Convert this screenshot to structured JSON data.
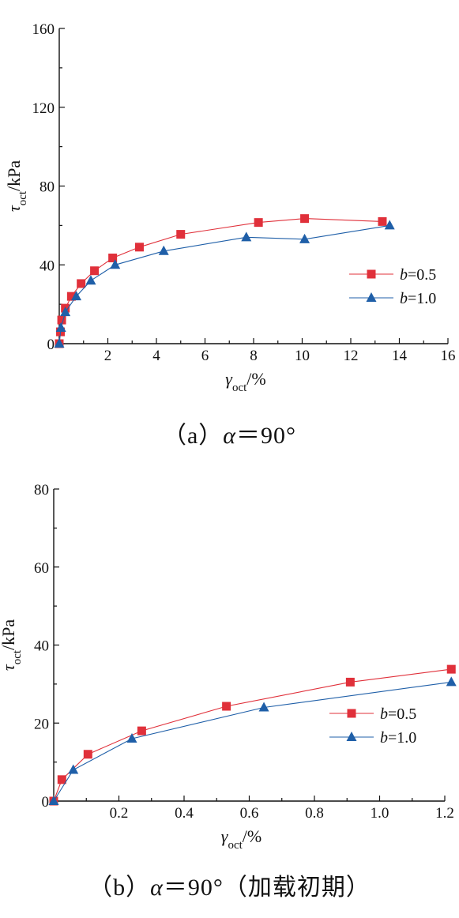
{
  "colors": {
    "series_red": "#e0303a",
    "series_blue": "#1f5fa8",
    "axis": "#111111"
  },
  "chart_data": [
    {
      "type": "line",
      "xlabel": {
        "symbol": "γ",
        "sub": "oct",
        "unit": "/%"
      },
      "ylabel": {
        "symbol": "τ",
        "sub": "oct",
        "unit": "/kPa"
      },
      "xlim": [
        0,
        16
      ],
      "ylim": [
        0,
        160
      ],
      "xticks": [
        2,
        4,
        6,
        8,
        10,
        12,
        14,
        16
      ],
      "yticks": [
        0,
        40,
        80,
        120,
        160
      ],
      "legend_position": "center-right",
      "series": [
        {
          "name": "b=0.5",
          "label_var": "b",
          "label_val": "=0.5",
          "marker": "square",
          "color": "#e0303a",
          "x": [
            0,
            0.05,
            0.1,
            0.25,
            0.5,
            0.9,
            1.45,
            2.2,
            3.3,
            5.0,
            8.2,
            10.1,
            13.3
          ],
          "y": [
            0,
            6,
            12,
            18,
            24,
            30.5,
            37,
            43.5,
            49,
            55.5,
            61.5,
            63.5,
            62
          ]
        },
        {
          "name": "b=1.0",
          "label_var": "b",
          "label_val": "=1.0",
          "marker": "triangle",
          "color": "#1f5fa8",
          "x": [
            0,
            0.07,
            0.25,
            0.7,
            1.3,
            2.3,
            4.3,
            7.7,
            10.1,
            13.6
          ],
          "y": [
            0,
            8,
            16,
            24,
            32,
            40,
            47,
            54,
            53,
            60
          ]
        }
      ],
      "caption": {
        "prefix": "（a）",
        "symbol": "α",
        "suffix": "＝90°"
      }
    },
    {
      "type": "line",
      "xlabel": {
        "symbol": "γ",
        "sub": "oct",
        "unit": "/%"
      },
      "ylabel": {
        "symbol": "τ",
        "sub": "oct",
        "unit": "/kPa"
      },
      "xlim": [
        0,
        1.2
      ],
      "ylim": [
        0,
        80
      ],
      "xticks": [
        0.2,
        0.4,
        0.6,
        0.8,
        1.0,
        1.2
      ],
      "xtick_labels": [
        "0.2",
        "0.4",
        "0.6",
        "0.8",
        "1.0",
        "1.2"
      ],
      "yticks": [
        0,
        20,
        40,
        60,
        80
      ],
      "legend_position": "center-right",
      "series": [
        {
          "name": "b=0.5",
          "label_var": "b",
          "label_val": "=0.5",
          "marker": "square",
          "color": "#e0303a",
          "x": [
            0,
            0.025,
            0.105,
            0.27,
            0.53,
            0.91,
            1.22
          ],
          "y": [
            0,
            5.5,
            12,
            18,
            24.3,
            30.5,
            33.8
          ]
        },
        {
          "name": "b=1.0",
          "label_var": "b",
          "label_val": "=1.0",
          "marker": "triangle",
          "color": "#1f5fa8",
          "x": [
            0,
            0.06,
            0.24,
            0.645,
            1.22
          ],
          "y": [
            0,
            8,
            16,
            24,
            30.5
          ]
        }
      ],
      "caption": {
        "prefix": "（b）",
        "symbol": "α",
        "suffix": "＝90°（加载初期）"
      }
    }
  ]
}
